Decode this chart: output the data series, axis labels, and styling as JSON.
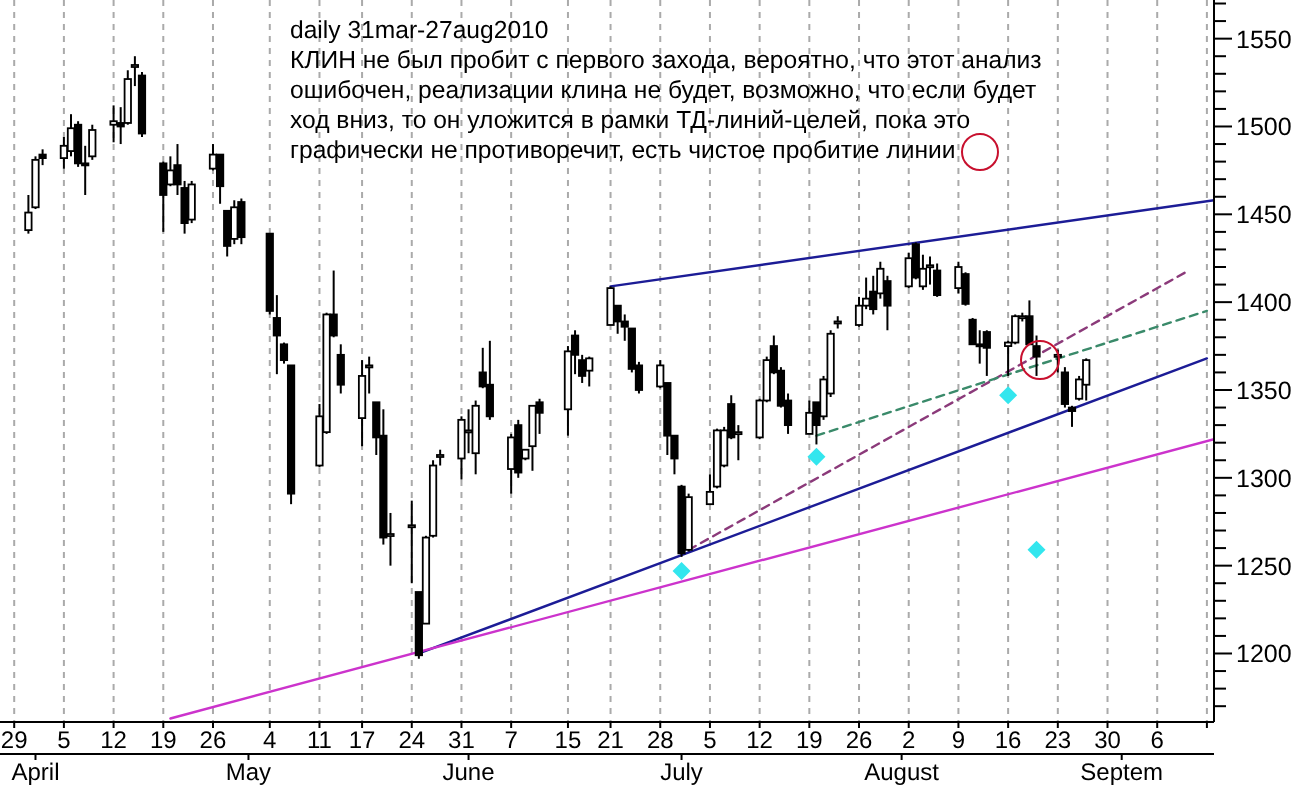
{
  "chart_data": {
    "type": "candlestick",
    "title": "daily 31mar-27aug2010",
    "annotations": [
      "КЛИН не был пробит с первого захода, вероятно, что этот анализ\nошибочен, реализации клина не будет, возможно, что если будет\nход вниз, то он уложится в рамки ТД-линий-целей, пока это\nграфически не противоречит, есть чистое пробитие линии"
    ],
    "x": [
      "2010-03-31",
      "2010-04-01",
      "2010-04-02",
      "2010-04-05",
      "2010-04-06",
      "2010-04-07",
      "2010-04-08",
      "2010-04-09",
      "2010-04-12",
      "2010-04-13",
      "2010-04-14",
      "2010-04-15",
      "2010-04-16",
      "2010-04-19",
      "2010-04-20",
      "2010-04-21",
      "2010-04-22",
      "2010-04-23",
      "2010-04-26",
      "2010-04-27",
      "2010-04-28",
      "2010-04-29",
      "2010-04-30",
      "2010-05-04",
      "2010-05-05",
      "2010-05-06",
      "2010-05-07",
      "2010-05-11",
      "2010-05-12",
      "2010-05-13",
      "2010-05-14",
      "2010-05-17",
      "2010-05-18",
      "2010-05-19",
      "2010-05-20",
      "2010-05-21",
      "2010-05-24",
      "2010-05-25",
      "2010-05-26",
      "2010-05-27",
      "2010-05-28",
      "2010-05-31",
      "2010-06-01",
      "2010-06-02",
      "2010-06-03",
      "2010-06-04",
      "2010-06-07",
      "2010-06-08",
      "2010-06-09",
      "2010-06-10",
      "2010-06-11",
      "2010-06-15",
      "2010-06-16",
      "2010-06-17",
      "2010-06-18",
      "2010-06-21",
      "2010-06-22",
      "2010-06-23",
      "2010-06-24",
      "2010-06-25",
      "2010-06-28",
      "2010-06-29",
      "2010-06-30",
      "2010-07-01",
      "2010-07-02",
      "2010-07-05",
      "2010-07-06",
      "2010-07-07",
      "2010-07-08",
      "2010-07-09",
      "2010-07-12",
      "2010-07-13",
      "2010-07-14",
      "2010-07-15",
      "2010-07-16",
      "2010-07-19",
      "2010-07-20",
      "2010-07-21",
      "2010-07-22",
      "2010-07-23",
      "2010-07-26",
      "2010-07-27",
      "2010-07-28",
      "2010-07-29",
      "2010-07-30",
      "2010-08-02",
      "2010-08-03",
      "2010-08-04",
      "2010-08-05",
      "2010-08-06",
      "2010-08-09",
      "2010-08-10",
      "2010-08-11",
      "2010-08-12",
      "2010-08-13",
      "2010-08-16",
      "2010-08-17",
      "2010-08-18",
      "2010-08-19",
      "2010-08-20",
      "2010-08-23",
      "2010-08-24",
      "2010-08-25",
      "2010-08-26",
      "2010-08-27"
    ],
    "ohlc": [
      [
        1441,
        1461,
        1439,
        1451
      ],
      [
        1454,
        1483,
        1453,
        1481
      ],
      [
        1484,
        1487,
        1478,
        1482
      ],
      [
        1482,
        1494,
        1476,
        1489
      ],
      [
        1486,
        1507,
        1483,
        1499
      ],
      [
        1501,
        1503,
        1477,
        1479
      ],
      [
        1479,
        1489,
        1461,
        1478
      ],
      [
        1483,
        1501,
        1481,
        1498
      ],
      [
        1501,
        1512,
        1491,
        1503
      ],
      [
        1502,
        1511,
        1490,
        1500
      ],
      [
        1502,
        1532,
        1501,
        1527
      ],
      [
        1534,
        1540,
        1523,
        1535
      ],
      [
        1529,
        1531,
        1494,
        1496
      ],
      [
        1479,
        1480,
        1440,
        1461
      ],
      [
        1467,
        1483,
        1466,
        1475
      ],
      [
        1478,
        1490,
        1461,
        1467
      ],
      [
        1465,
        1469,
        1439,
        1445
      ],
      [
        1447,
        1469,
        1445,
        1467
      ],
      [
        1476,
        1490,
        1475,
        1484
      ],
      [
        1484,
        1484,
        1456,
        1466
      ],
      [
        1452,
        1452,
        1426,
        1432
      ],
      [
        1436,
        1458,
        1433,
        1454
      ],
      [
        1457,
        1459,
        1433,
        1437
      ],
      [
        1439,
        1439,
        1393,
        1395
      ],
      [
        1391,
        1404,
        1359,
        1381
      ],
      [
        1376,
        1377,
        1365,
        1367
      ],
      [
        1364,
        1364,
        1285,
        1291
      ],
      [
        1307,
        1342,
        1306,
        1335
      ],
      [
        1326,
        1394,
        1325,
        1393
      ],
      [
        1393,
        1418,
        1380,
        1381
      ],
      [
        1370,
        1376,
        1348,
        1353
      ],
      [
        1334,
        1367,
        1318,
        1358
      ],
      [
        1363,
        1369,
        1348,
        1364
      ],
      [
        1343,
        1343,
        1313,
        1323
      ],
      [
        1324,
        1339,
        1262,
        1266
      ],
      [
        1267,
        1280,
        1250,
        1268
      ],
      [
        1272,
        1287,
        1240,
        1273
      ],
      [
        1235,
        1235,
        1197,
        1199
      ],
      [
        1217,
        1267,
        1217,
        1266
      ],
      [
        1267,
        1310,
        1266,
        1307
      ],
      [
        1312,
        1316,
        1307,
        1313
      ],
      [
        1311,
        1335,
        1299,
        1333
      ],
      [
        1326,
        1339,
        1314,
        1327
      ],
      [
        1314,
        1344,
        1302,
        1341
      ],
      [
        1360,
        1374,
        1351,
        1352
      ],
      [
        1353,
        1378,
        1333,
        1335
      ],
      [
        1305,
        1325,
        1291,
        1323
      ],
      [
        1330,
        1333,
        1300,
        1303
      ],
      [
        1311,
        1316,
        1310,
        1316
      ],
      [
        1318,
        1341,
        1304,
        1341
      ],
      [
        1343,
        1345,
        1325,
        1337
      ],
      [
        1339,
        1375,
        1324,
        1372
      ],
      [
        1381,
        1384,
        1359,
        1370
      ],
      [
        1367,
        1370,
        1354,
        1358
      ],
      [
        1361,
        1369,
        1352,
        1368
      ],
      [
        1387,
        1409,
        1387,
        1408
      ],
      [
        1398,
        1398,
        1382,
        1389
      ],
      [
        1389,
        1393,
        1378,
        1386
      ],
      [
        1385,
        1385,
        1360,
        1362
      ],
      [
        1364,
        1366,
        1348,
        1350
      ],
      [
        1352,
        1367,
        1351,
        1364
      ],
      [
        1354,
        1354,
        1313,
        1324
      ],
      [
        1324,
        1324,
        1302,
        1311
      ],
      [
        1295,
        1296,
        1255,
        1257
      ],
      [
        1259,
        1291,
        1258,
        1289
      ],
      [
        1285,
        1302,
        1285,
        1292
      ],
      [
        1295,
        1328,
        1294,
        1327
      ],
      [
        1307,
        1329,
        1306,
        1327
      ],
      [
        1342,
        1347,
        1322,
        1323
      ],
      [
        1325,
        1330,
        1310,
        1326
      ],
      [
        1323,
        1345,
        1322,
        1344
      ],
      [
        1344,
        1369,
        1343,
        1367
      ],
      [
        1375,
        1381,
        1359,
        1360
      ],
      [
        1361,
        1363,
        1340,
        1341
      ],
      [
        1344,
        1348,
        1325,
        1330
      ],
      [
        1325,
        1344,
        1325,
        1337
      ],
      [
        1343,
        1343,
        1319,
        1330
      ],
      [
        1335,
        1358,
        1333,
        1356
      ],
      [
        1348,
        1384,
        1346,
        1382
      ],
      [
        1388,
        1392,
        1385,
        1389
      ],
      [
        1387,
        1403,
        1386,
        1398
      ],
      [
        1398,
        1414,
        1396,
        1402
      ],
      [
        1406,
        1415,
        1393,
        1396
      ],
      [
        1405,
        1423,
        1402,
        1419
      ],
      [
        1412,
        1415,
        1384,
        1398
      ],
      [
        1409,
        1428,
        1408,
        1425
      ],
      [
        1433,
        1434,
        1413,
        1414
      ],
      [
        1409,
        1427,
        1407,
        1419
      ],
      [
        1420,
        1426,
        1410,
        1421
      ],
      [
        1418,
        1422,
        1403,
        1404
      ],
      [
        1408,
        1423,
        1405,
        1420
      ],
      [
        1416,
        1417,
        1398,
        1399
      ],
      [
        1390,
        1391,
        1376,
        1376
      ],
      [
        1376,
        1384,
        1365,
        1375
      ],
      [
        1383,
        1384,
        1358,
        1374
      ],
      [
        1375,
        1378,
        1358,
        1377
      ],
      [
        1377,
        1393,
        1376,
        1392
      ],
      [
        1391,
        1394,
        1389,
        1392
      ],
      [
        1392,
        1401,
        1376,
        1376
      ],
      [
        1375,
        1381,
        1358,
        1369
      ],
      [
        1369,
        1373,
        1360,
        1370
      ],
      [
        1360,
        1363,
        1340,
        1342
      ],
      [
        1340,
        1341,
        1329,
        1338
      ],
      [
        1345,
        1358,
        1344,
        1356
      ],
      [
        1353,
        1368,
        1344,
        1367
      ]
    ],
    "series": [
      {
        "type": "line",
        "x": [
          "2010-06-21",
          "2010-09-14"
        ],
        "values": [
          1409,
          1458
        ],
        "color": "#1c1c96",
        "line_style": "solid"
      },
      {
        "type": "line",
        "x": [
          "2010-05-25",
          "2010-09-13"
        ],
        "values": [
          1200,
          1368
        ],
        "color": "#1c1c96",
        "line_style": "solid"
      },
      {
        "type": "line",
        "x": [
          "2010-04-20",
          "2010-09-14"
        ],
        "values": [
          1163,
          1322
        ],
        "color": "#cc33cc",
        "line_style": "solid"
      },
      {
        "type": "line",
        "x": [
          "2010-07-02",
          "2010-09-10"
        ],
        "values": [
          1259,
          1417
        ],
        "color": "#8b3a7a",
        "line_style": "dashed"
      },
      {
        "type": "line",
        "x": [
          "2010-07-20",
          "2010-09-13"
        ],
        "values": [
          1324,
          1395
        ],
        "color": "#3a8a6a",
        "line_style": "dashed"
      },
      {
        "type": "scatter",
        "x": [
          "2010-07-01",
          "2010-07-20",
          "2010-08-16",
          "2010-08-20"
        ],
        "values": [
          1247,
          1312,
          1347,
          1259
        ],
        "color": "#33e6ee",
        "marker": "diamond"
      }
    ],
    "xlim": [
      "2010-03-27",
      "2010-09-14"
    ],
    "xticks": [
      {
        "value": "2010-03-29",
        "label": "29"
      },
      {
        "value": "2010-04-05",
        "label": "5"
      },
      {
        "value": "2010-04-12",
        "label": "12"
      },
      {
        "value": "2010-04-19",
        "label": "19"
      },
      {
        "value": "2010-04-26",
        "label": "26"
      },
      {
        "value": "2010-05-04",
        "label": "4"
      },
      {
        "value": "2010-05-11",
        "label": "11"
      },
      {
        "value": "2010-05-17",
        "label": "17"
      },
      {
        "value": "2010-05-24",
        "label": "24"
      },
      {
        "value": "2010-05-31",
        "label": "31"
      },
      {
        "value": "2010-06-07",
        "label": "7"
      },
      {
        "value": "2010-06-15",
        "label": "15"
      },
      {
        "value": "2010-06-21",
        "label": "21"
      },
      {
        "value": "2010-06-28",
        "label": "28"
      },
      {
        "value": "2010-07-05",
        "label": "5"
      },
      {
        "value": "2010-07-12",
        "label": "12"
      },
      {
        "value": "2010-07-19",
        "label": "19"
      },
      {
        "value": "2010-07-26",
        "label": "26"
      },
      {
        "value": "2010-08-02",
        "label": "2"
      },
      {
        "value": "2010-08-09",
        "label": "9"
      },
      {
        "value": "2010-08-16",
        "label": "16"
      },
      {
        "value": "2010-08-23",
        "label": "23"
      },
      {
        "value": "2010-08-30",
        "label": "30"
      },
      {
        "value": "2010-09-06",
        "label": "6"
      },
      {
        "value": "2010-09-13",
        "label": null
      }
    ],
    "x2lim": [
      "2010-03-27",
      "2010-09-14"
    ],
    "x2ticks": [
      {
        "value": "2010-04-01",
        "label": "April"
      },
      {
        "value": "2010-05-01",
        "label": "May"
      },
      {
        "value": "2010-06-01",
        "label": "June"
      },
      {
        "value": "2010-07-01",
        "label": "July"
      },
      {
        "value": "2010-08-01",
        "label": "August"
      },
      {
        "value": "2010-09-01",
        "label": "Septem"
      }
    ],
    "ylim": [
      1161,
      1572
    ],
    "yticks": [
      {
        "value": 1170,
        "label": null
      },
      {
        "value": 1180,
        "label": null
      },
      {
        "value": 1190,
        "label": null
      },
      1200,
      {
        "value": 1210,
        "label": null
      },
      {
        "value": 1220,
        "label": null
      },
      {
        "value": 1230,
        "label": null
      },
      {
        "value": 1240,
        "label": null
      },
      1250,
      {
        "value": 1260,
        "label": null
      },
      {
        "value": 1270,
        "label": null
      },
      {
        "value": 1280,
        "label": null
      },
      {
        "value": 1290,
        "label": null
      },
      1300,
      {
        "value": 1310,
        "label": null
      },
      {
        "value": 1320,
        "label": null
      },
      {
        "value": 1330,
        "label": null
      },
      {
        "value": 1340,
        "label": null
      },
      1350,
      {
        "value": 1360,
        "label": null
      },
      {
        "value": 1370,
        "label": null
      },
      {
        "value": 1380,
        "label": null
      },
      {
        "value": 1390,
        "label": null
      },
      1400,
      {
        "value": 1410,
        "label": null
      },
      {
        "value": 1420,
        "label": null
      },
      {
        "value": 1430,
        "label": null
      },
      {
        "value": 1440,
        "label": null
      },
      1450,
      {
        "value": 1460,
        "label": null
      },
      {
        "value": 1470,
        "label": null
      },
      {
        "value": 1480,
        "label": null
      },
      {
        "value": 1490,
        "label": null
      },
      1500,
      {
        "value": 1510,
        "label": null
      },
      {
        "value": 1520,
        "label": null
      },
      {
        "value": 1530,
        "label": null
      },
      {
        "value": 1540,
        "label": null
      },
      1550,
      {
        "value": 1560,
        "label": null
      },
      {
        "value": 1570,
        "label": null
      }
    ],
    "grid": "x"
  }
}
